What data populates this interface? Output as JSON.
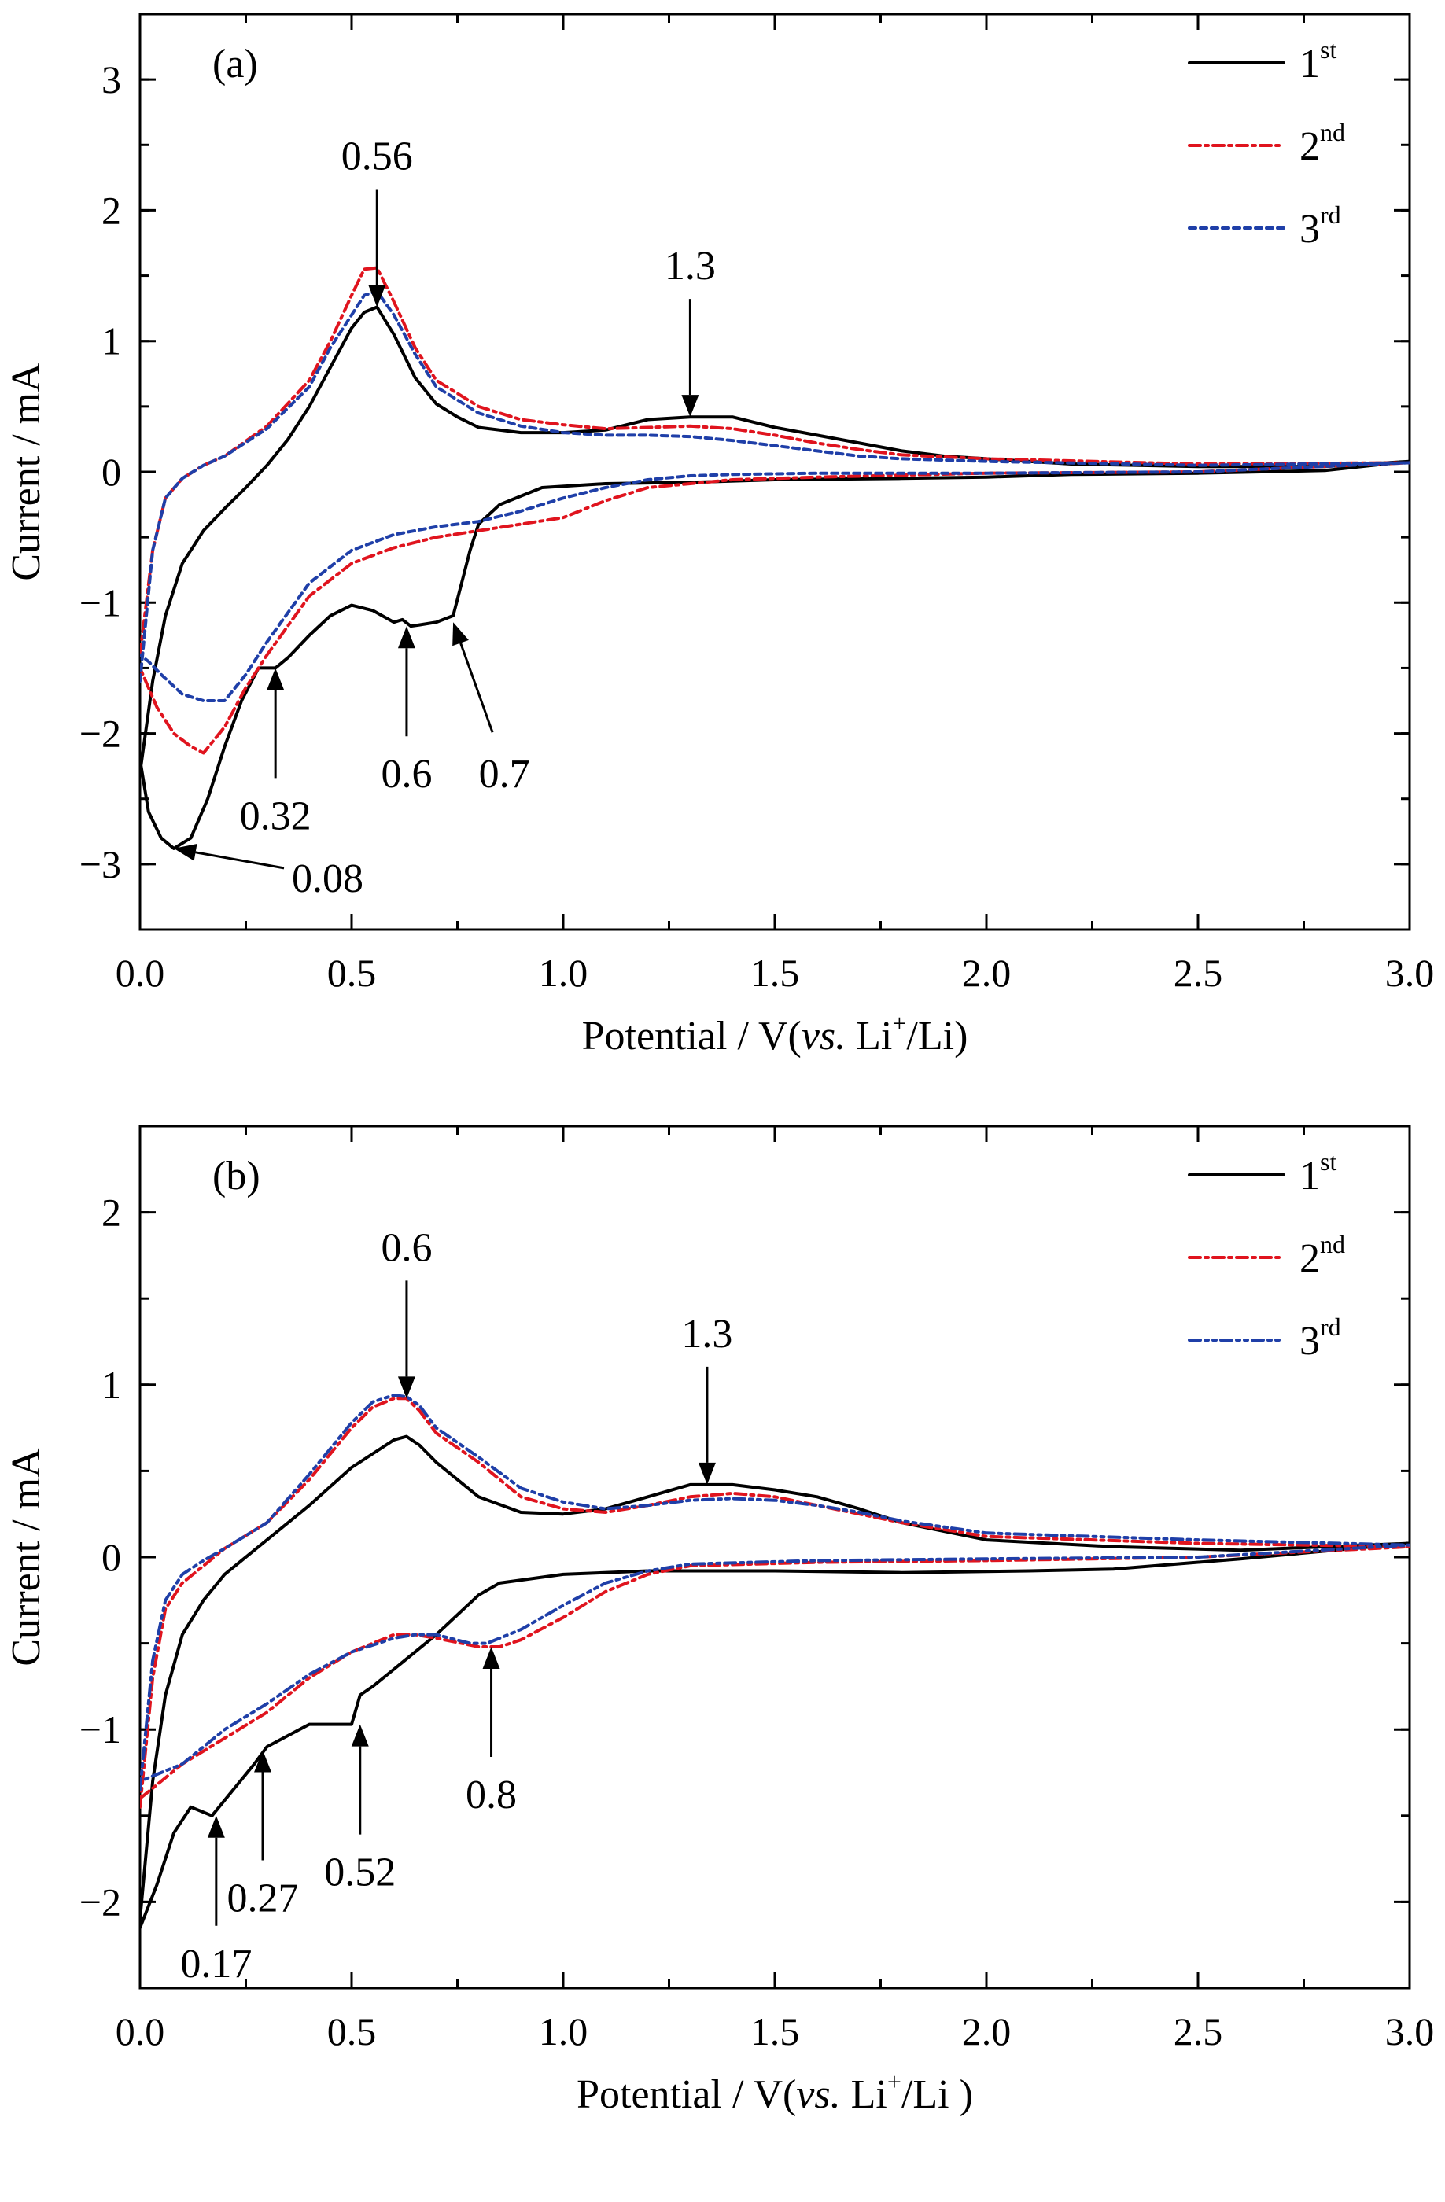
{
  "chart_data": [
    {
      "panel_label": "(a)",
      "type": "line",
      "xlabel": "Potential / V(vs. Li+/Li)",
      "xlabel_parts": {
        "pre": "Potential / V(",
        "italic": "vs.",
        "mid": " Li",
        "sup": "+",
        "post": "/Li)"
      },
      "ylabel": "Current / mA",
      "xlim": [
        0,
        3.0
      ],
      "ylim": [
        -3.5,
        3.5
      ],
      "xticks": [
        "0.0",
        "0.5",
        "1.0",
        "1.5",
        "2.0",
        "2.5",
        "3.0"
      ],
      "xtick_values": [
        0,
        0.5,
        1.0,
        1.5,
        2.0,
        2.5,
        3.0
      ],
      "yticks": [
        "−3",
        "−2",
        "−1",
        "0",
        "1",
        "2",
        "3"
      ],
      "ytick_values": [
        -3,
        -2,
        -1,
        0,
        1,
        2,
        3
      ],
      "legend_position": "top-right",
      "series": [
        {
          "name": "1st",
          "legend_main": "1",
          "legend_sup": "st",
          "color": "#000000",
          "dash": "solid",
          "x": [
            0.0,
            0.03,
            0.06,
            0.1,
            0.15,
            0.2,
            0.25,
            0.3,
            0.35,
            0.4,
            0.45,
            0.5,
            0.53,
            0.56,
            0.6,
            0.65,
            0.7,
            0.75,
            0.8,
            0.9,
            1.0,
            1.1,
            1.2,
            1.3,
            1.4,
            1.5,
            1.6,
            1.7,
            1.8,
            1.9,
            2.0,
            2.2,
            2.5,
            2.8,
            3.0,
            2.8,
            2.5,
            2.2,
            2.0,
            1.8,
            1.5,
            1.3,
            1.1,
            0.95,
            0.85,
            0.8,
            0.78,
            0.76,
            0.74,
            0.7,
            0.66,
            0.64,
            0.62,
            0.6,
            0.55,
            0.5,
            0.45,
            0.4,
            0.35,
            0.32,
            0.28,
            0.24,
            0.2,
            0.16,
            0.12,
            0.08,
            0.05,
            0.02,
            0.0
          ],
          "y": [
            -2.3,
            -1.6,
            -1.1,
            -0.7,
            -0.45,
            -0.28,
            -0.12,
            0.05,
            0.25,
            0.5,
            0.8,
            1.1,
            1.22,
            1.26,
            1.05,
            0.72,
            0.52,
            0.42,
            0.34,
            0.3,
            0.3,
            0.32,
            0.4,
            0.42,
            0.42,
            0.34,
            0.28,
            0.22,
            0.16,
            0.12,
            0.1,
            0.06,
            0.04,
            0.04,
            0.08,
            0.01,
            -0.01,
            -0.02,
            -0.04,
            -0.05,
            -0.06,
            -0.08,
            -0.09,
            -0.12,
            -0.25,
            -0.4,
            -0.6,
            -0.85,
            -1.1,
            -1.15,
            -1.17,
            -1.18,
            -1.13,
            -1.15,
            -1.06,
            -1.02,
            -1.1,
            -1.25,
            -1.42,
            -1.5,
            -1.5,
            -1.75,
            -2.1,
            -2.5,
            -2.8,
            -2.88,
            -2.8,
            -2.6,
            -2.2
          ]
        },
        {
          "name": "2nd",
          "legend_main": "2",
          "legend_sup": "nd",
          "color": "#e0141e",
          "dash": "14,6,4,6",
          "x": [
            0.0,
            0.03,
            0.06,
            0.1,
            0.15,
            0.2,
            0.3,
            0.4,
            0.45,
            0.5,
            0.53,
            0.56,
            0.6,
            0.65,
            0.7,
            0.8,
            0.9,
            1.0,
            1.1,
            1.2,
            1.3,
            1.4,
            1.5,
            1.6,
            1.7,
            1.8,
            2.0,
            2.5,
            3.0,
            2.5,
            2.0,
            1.6,
            1.4,
            1.2,
            1.1,
            1.0,
            0.9,
            0.8,
            0.7,
            0.6,
            0.5,
            0.4,
            0.3,
            0.25,
            0.2,
            0.15,
            0.12,
            0.08,
            0.04,
            0.0
          ],
          "y": [
            -1.4,
            -0.6,
            -0.2,
            -0.05,
            0.05,
            0.12,
            0.35,
            0.7,
            1.0,
            1.35,
            1.55,
            1.56,
            1.3,
            0.95,
            0.7,
            0.5,
            0.4,
            0.36,
            0.33,
            0.34,
            0.35,
            0.33,
            0.28,
            0.22,
            0.17,
            0.13,
            0.1,
            0.06,
            0.07,
            0.0,
            -0.01,
            -0.04,
            -0.06,
            -0.12,
            -0.22,
            -0.35,
            -0.4,
            -0.45,
            -0.5,
            -0.58,
            -0.7,
            -0.95,
            -1.4,
            -1.65,
            -1.95,
            -2.15,
            -2.1,
            -2.0,
            -1.8,
            -1.5
          ]
        },
        {
          "name": "3rd",
          "legend_main": "3",
          "legend_sup": "rd",
          "color": "#1f3fa8",
          "dash": "8,6",
          "x": [
            0.0,
            0.03,
            0.06,
            0.1,
            0.15,
            0.2,
            0.3,
            0.4,
            0.45,
            0.5,
            0.53,
            0.56,
            0.6,
            0.65,
            0.7,
            0.8,
            0.9,
            1.0,
            1.1,
            1.2,
            1.3,
            1.4,
            1.5,
            1.6,
            1.7,
            1.8,
            2.0,
            2.5,
            3.0,
            2.5,
            2.0,
            1.6,
            1.4,
            1.3,
            1.2,
            1.1,
            1.0,
            0.9,
            0.8,
            0.7,
            0.6,
            0.5,
            0.4,
            0.3,
            0.25,
            0.2,
            0.15,
            0.1,
            0.05,
            0.02,
            0.0
          ],
          "y": [
            -1.6,
            -0.6,
            -0.2,
            -0.05,
            0.05,
            0.12,
            0.33,
            0.65,
            0.95,
            1.2,
            1.35,
            1.38,
            1.2,
            0.9,
            0.65,
            0.45,
            0.35,
            0.3,
            0.28,
            0.28,
            0.27,
            0.24,
            0.2,
            0.16,
            0.12,
            0.1,
            0.08,
            0.05,
            0.07,
            0.0,
            -0.01,
            -0.01,
            -0.02,
            -0.03,
            -0.06,
            -0.12,
            -0.2,
            -0.3,
            -0.38,
            -0.42,
            -0.48,
            -0.6,
            -0.85,
            -1.3,
            -1.55,
            -1.75,
            -1.75,
            -1.7,
            -1.55,
            -1.45,
            -1.4
          ]
        }
      ],
      "annotations": [
        {
          "text": "0.56",
          "x": 0.56,
          "y": 1.26,
          "dir": "down"
        },
        {
          "text": "1.3",
          "x": 1.3,
          "y": 0.42,
          "dir": "down"
        },
        {
          "text": "0.32",
          "x": 0.32,
          "y": -1.5,
          "dir": "up"
        },
        {
          "text": "0.6",
          "x": 0.63,
          "y": -1.18,
          "dir": "up"
        },
        {
          "text": "0.7",
          "x": 0.74,
          "y": -1.15,
          "dir": "up-diag"
        },
        {
          "text": "0.08",
          "x": 0.08,
          "y": -2.88,
          "dir": "left-diag"
        }
      ]
    },
    {
      "panel_label": "(b)",
      "type": "line",
      "xlabel": "Potential / V(vs. Li+/Li )",
      "xlabel_parts": {
        "pre": "Potential / V(",
        "italic": "vs.",
        "mid": " Li",
        "sup": "+",
        "post": "/Li )"
      },
      "ylabel": "Current / mA",
      "xlim": [
        0,
        3.0
      ],
      "ylim": [
        -2.5,
        2.5
      ],
      "xticks": [
        "0.0",
        "0.5",
        "1.0",
        "1.5",
        "2.0",
        "2.5",
        "3.0"
      ],
      "xtick_values": [
        0,
        0.5,
        1.0,
        1.5,
        2.0,
        2.5,
        3.0
      ],
      "yticks": [
        "−2",
        "−1",
        "0",
        "1",
        "2"
      ],
      "ytick_values": [
        -2,
        -1,
        0,
        1,
        2
      ],
      "legend_position": "top-right",
      "series": [
        {
          "name": "1st",
          "legend_main": "1",
          "legend_sup": "st",
          "color": "#000000",
          "dash": "solid",
          "x": [
            0.0,
            0.03,
            0.06,
            0.1,
            0.15,
            0.2,
            0.3,
            0.4,
            0.5,
            0.55,
            0.6,
            0.63,
            0.66,
            0.7,
            0.8,
            0.9,
            1.0,
            1.1,
            1.2,
            1.3,
            1.4,
            1.5,
            1.6,
            1.7,
            1.8,
            2.0,
            2.3,
            2.6,
            3.0,
            2.6,
            2.3,
            2.1,
            1.8,
            1.5,
            1.2,
            1.0,
            0.85,
            0.8,
            0.7,
            0.6,
            0.55,
            0.52,
            0.5,
            0.4,
            0.3,
            0.27,
            0.22,
            0.17,
            0.12,
            0.08,
            0.04,
            0.0
          ],
          "y": [
            -2.1,
            -1.3,
            -0.8,
            -0.45,
            -0.25,
            -0.1,
            0.1,
            0.3,
            0.52,
            0.6,
            0.68,
            0.7,
            0.65,
            0.55,
            0.35,
            0.26,
            0.25,
            0.28,
            0.35,
            0.42,
            0.42,
            0.39,
            0.35,
            0.28,
            0.2,
            0.1,
            0.06,
            0.04,
            0.08,
            -0.01,
            -0.07,
            -0.08,
            -0.09,
            -0.08,
            -0.08,
            -0.1,
            -0.15,
            -0.22,
            -0.45,
            -0.65,
            -0.75,
            -0.8,
            -0.97,
            -0.97,
            -1.1,
            -1.2,
            -1.35,
            -1.5,
            -1.45,
            -1.6,
            -1.9,
            -2.15
          ]
        },
        {
          "name": "2nd",
          "legend_main": "2",
          "legend_sup": "nd",
          "color": "#e0141e",
          "dash": "14,6,4,6",
          "x": [
            0.0,
            0.03,
            0.06,
            0.1,
            0.15,
            0.2,
            0.3,
            0.4,
            0.5,
            0.55,
            0.6,
            0.63,
            0.66,
            0.7,
            0.8,
            0.9,
            1.0,
            1.1,
            1.2,
            1.3,
            1.4,
            1.5,
            1.6,
            1.7,
            1.8,
            2.0,
            2.5,
            3.0,
            2.5,
            2.0,
            1.6,
            1.3,
            1.2,
            1.1,
            1.0,
            0.9,
            0.85,
            0.8,
            0.7,
            0.65,
            0.6,
            0.5,
            0.4,
            0.3,
            0.2,
            0.1,
            0.05,
            0.0
          ],
          "y": [
            -1.45,
            -0.7,
            -0.3,
            -0.15,
            -0.05,
            0.05,
            0.2,
            0.45,
            0.75,
            0.87,
            0.92,
            0.92,
            0.85,
            0.72,
            0.55,
            0.35,
            0.28,
            0.26,
            0.3,
            0.35,
            0.37,
            0.35,
            0.3,
            0.25,
            0.2,
            0.12,
            0.08,
            0.06,
            0.0,
            -0.02,
            -0.03,
            -0.05,
            -0.1,
            -0.2,
            -0.35,
            -0.48,
            -0.52,
            -0.52,
            -0.47,
            -0.45,
            -0.45,
            -0.55,
            -0.7,
            -0.9,
            -1.05,
            -1.2,
            -1.3,
            -1.4
          ]
        },
        {
          "name": "3rd",
          "legend_main": "3",
          "legend_sup": "rd",
          "color": "#1f3fa8",
          "dash": "14,6,4,6,4,6",
          "x": [
            0.0,
            0.03,
            0.06,
            0.1,
            0.15,
            0.2,
            0.3,
            0.4,
            0.5,
            0.55,
            0.6,
            0.63,
            0.66,
            0.7,
            0.8,
            0.9,
            1.0,
            1.1,
            1.2,
            1.3,
            1.4,
            1.5,
            1.6,
            1.7,
            1.8,
            2.0,
            2.5,
            3.0,
            2.5,
            2.0,
            1.6,
            1.3,
            1.2,
            1.1,
            1.0,
            0.9,
            0.82,
            0.78,
            0.7,
            0.65,
            0.6,
            0.5,
            0.4,
            0.3,
            0.2,
            0.1,
            0.05,
            0.0
          ],
          "y": [
            -1.35,
            -0.6,
            -0.25,
            -0.1,
            -0.02,
            0.05,
            0.2,
            0.48,
            0.78,
            0.9,
            0.94,
            0.93,
            0.88,
            0.75,
            0.58,
            0.4,
            0.32,
            0.28,
            0.3,
            0.33,
            0.34,
            0.33,
            0.3,
            0.26,
            0.21,
            0.14,
            0.1,
            0.07,
            0.0,
            -0.01,
            -0.02,
            -0.04,
            -0.08,
            -0.15,
            -0.28,
            -0.42,
            -0.5,
            -0.5,
            -0.45,
            -0.45,
            -0.47,
            -0.55,
            -0.68,
            -0.85,
            -1.0,
            -1.2,
            -1.25,
            -1.3
          ]
        }
      ],
      "annotations": [
        {
          "text": "0.6",
          "x": 0.63,
          "y": 0.92,
          "dir": "down"
        },
        {
          "text": "1.3",
          "x": 1.34,
          "y": 0.42,
          "dir": "down"
        },
        {
          "text": "0.8",
          "x": 0.83,
          "y": -0.52,
          "dir": "up"
        },
        {
          "text": "0.52",
          "x": 0.52,
          "y": -0.97,
          "dir": "up"
        },
        {
          "text": "0.27",
          "x": 0.29,
          "y": -1.12,
          "dir": "up"
        },
        {
          "text": "0.17",
          "x": 0.18,
          "y": -1.5,
          "dir": "up"
        }
      ]
    }
  ]
}
